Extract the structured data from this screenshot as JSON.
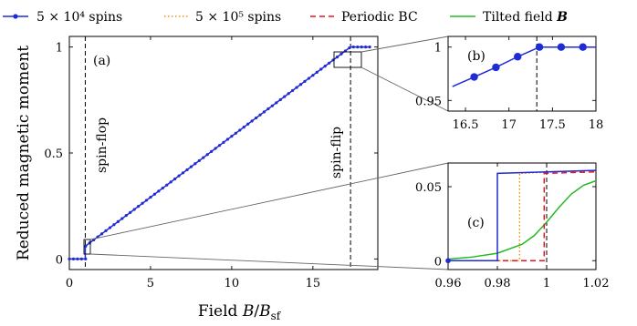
{
  "legend": {
    "items": [
      {
        "label": "5 × 10⁴ spins",
        "color": "#1f2bd4",
        "style": "solid-dots"
      },
      {
        "label": "5 × 10⁵ spins",
        "color": "#ff8c1a",
        "style": "dotted"
      },
      {
        "label": "Periodic BC",
        "color": "#e8141e",
        "style": "dashed"
      },
      {
        "label": "Tilted field B",
        "color": "#22bb22",
        "style": "solid"
      }
    ]
  },
  "chart_data": [
    {
      "type": "line",
      "panel_label": "(a)",
      "xlabel": "Field B/B_sf",
      "ylabel": "Reduced magnetic moment",
      "xlim": [
        0,
        19
      ],
      "ylim": [
        -0.05,
        1.05
      ],
      "xticks": [
        "0",
        "5",
        "10",
        "15"
      ],
      "yticks": [
        "0",
        "0.5",
        "1"
      ],
      "vlines": [
        {
          "x": 0.98,
          "label": "spin-flop"
        },
        {
          "x": 17.32,
          "label": "spin-flip"
        }
      ],
      "series": [
        {
          "name": "5 × 10⁴ spins",
          "x": [
            0,
            0.98,
            0.98,
            17.32,
            18.5
          ],
          "y": [
            0,
            0,
            0.06,
            1.0,
            1.0
          ]
        }
      ],
      "marker_step": 0.25
    },
    {
      "type": "line",
      "panel_label": "(b)",
      "xlim": [
        16.3,
        18
      ],
      "ylim": [
        0.94,
        1.01
      ],
      "xticks": [
        "16.5",
        "17",
        "17.5",
        "18"
      ],
      "yticks": [
        "0.95",
        "1"
      ],
      "vlines": [
        {
          "x": 17.32
        }
      ],
      "series": [
        {
          "name": "5 × 10⁴ spins",
          "x": [
            16.35,
            16.6,
            16.85,
            17.1,
            17.35,
            17.6,
            17.85,
            18.0
          ],
          "y": [
            0.963,
            0.972,
            0.981,
            0.991,
            1.0,
            1.0,
            1.0,
            1.0
          ],
          "markers_x": [
            16.6,
            16.85,
            17.1,
            17.35,
            17.6,
            17.85
          ]
        }
      ]
    },
    {
      "type": "line",
      "panel_label": "(c)",
      "xlim": [
        0.96,
        1.02
      ],
      "ylim": [
        -0.006,
        0.066
      ],
      "xticks": [
        "0.96",
        "0.98",
        "1",
        "1.02"
      ],
      "yticks": [
        "0",
        "0.05"
      ],
      "vlines": [
        {
          "x": 1.0
        }
      ],
      "series": [
        {
          "name": "5 × 10⁴ spins",
          "style": "solid-dots",
          "color": "#1f2bd4",
          "x": [
            0.96,
            0.98,
            0.98,
            1.02
          ],
          "y": [
            0,
            0,
            0.059,
            0.061
          ],
          "marker_step": 0.002
        },
        {
          "name": "5 × 10⁵ spins",
          "style": "dotted",
          "color": "#ff8c1a",
          "x": [
            0.96,
            0.989,
            0.989,
            1.02
          ],
          "y": [
            0,
            0,
            0.059,
            0.061
          ]
        },
        {
          "name": "Periodic BC",
          "style": "dashed",
          "color": "#e8141e",
          "x": [
            0.96,
            0.999,
            0.999,
            1.02
          ],
          "y": [
            0,
            0,
            0.059,
            0.06
          ]
        },
        {
          "name": "Tilted field B",
          "style": "solid",
          "color": "#22bb22",
          "x": [
            0.96,
            0.97,
            0.98,
            0.99,
            0.995,
            1.0,
            1.005,
            1.01,
            1.015,
            1.02
          ],
          "y": [
            0.001,
            0.0025,
            0.005,
            0.011,
            0.017,
            0.026,
            0.036,
            0.045,
            0.051,
            0.054
          ]
        }
      ]
    }
  ]
}
